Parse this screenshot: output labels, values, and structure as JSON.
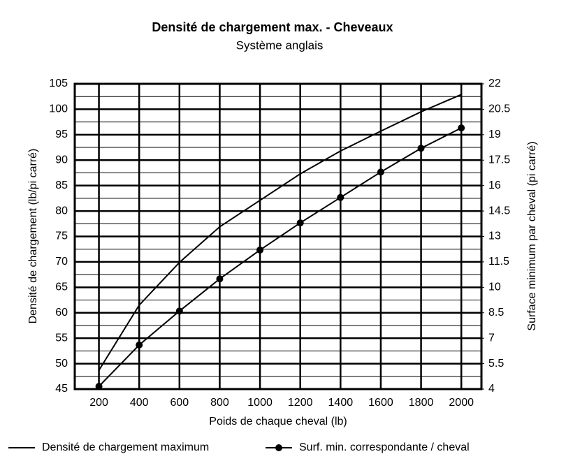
{
  "chart_data": {
    "type": "line",
    "title": "Densité de chargement max. - Cheveaux",
    "subtitle": "Système anglais",
    "xlabel": "Poids de chaque cheval (lb)",
    "ylabel": "Densité de chargement (lb/pi carré)",
    "y2label": "Surface minimum par cheval (pi carré)",
    "x": [
      200,
      400,
      600,
      800,
      1000,
      1200,
      1400,
      1600,
      1800,
      2000
    ],
    "xlim": [
      80,
      2100
    ],
    "xticks": [
      200,
      400,
      600,
      800,
      1000,
      1200,
      1400,
      1600,
      1800,
      2000
    ],
    "ylim": [
      45,
      105
    ],
    "yticks": [
      45,
      50,
      55,
      60,
      65,
      70,
      75,
      80,
      85,
      90,
      95,
      100,
      105
    ],
    "y2lim": [
      4,
      22
    ],
    "y2ticks": [
      4,
      5.5,
      7,
      8.5,
      10,
      11.5,
      13,
      14.5,
      16,
      17.5,
      19,
      20.5,
      22
    ],
    "grid": true,
    "legend": "bottom",
    "series": [
      {
        "name": "Densité de chargement maximum",
        "color": "#000000",
        "marker": false,
        "values": [
          48.7,
          61.5,
          69.9,
          76.9,
          82.1,
          87.3,
          91.8,
          95.7,
          99.5,
          102.9
        ]
      },
      {
        "name": "Surf. min. correspondante / cheval",
        "color": "#000000",
        "marker": true,
        "axis": "y2",
        "values": [
          4.16,
          6.6,
          8.6,
          10.5,
          12.2,
          13.8,
          15.3,
          16.8,
          18.2,
          19.4
        ]
      }
    ]
  }
}
